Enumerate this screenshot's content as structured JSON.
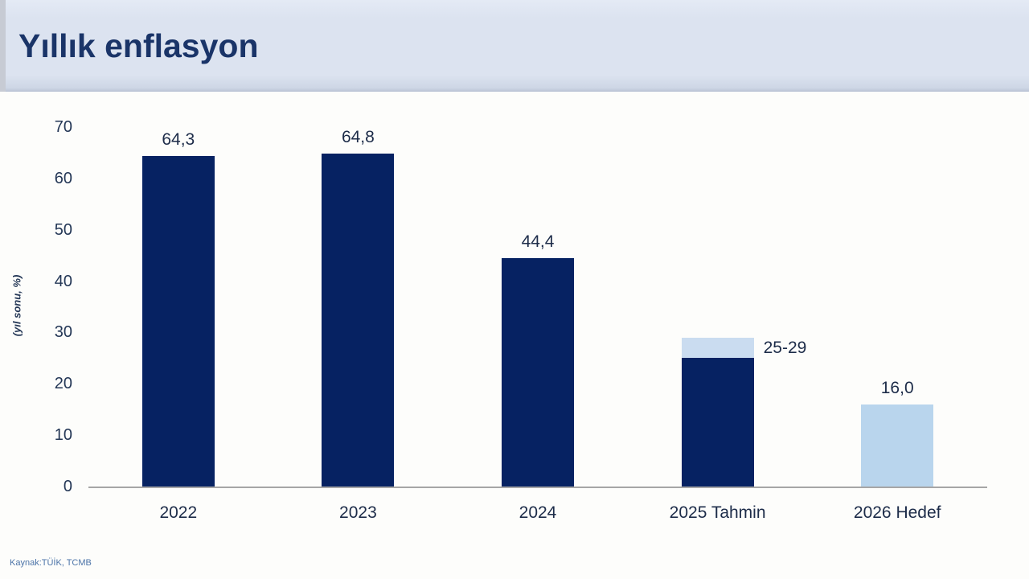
{
  "header": {
    "title": "Yıllık enflasyon"
  },
  "footer": {
    "source_label": "Kaynak:TÜİK, TCMB"
  },
  "colors": {
    "header_band": "#dce3f0",
    "header_band_edge": "#b9c2d3",
    "header_band_left_strip": "#c7cbd4",
    "title_text": "#1a3468",
    "bar_navy": "#062262",
    "bar_light_blue": "#b9d5ed",
    "bar_light_blue_cap": "#cadcf0",
    "axis_line": "#a6a6a6",
    "tick_text": "#243756",
    "data_label_text": "#1d2c49",
    "source_text": "#4c74a8"
  },
  "chart_data": {
    "type": "bar",
    "title": "Yıllık enflasyon",
    "ylabel": "(yıl sonu, %)",
    "xlabel": "",
    "ylim": [
      0,
      70
    ],
    "yticks": [
      0,
      10,
      20,
      30,
      40,
      50,
      60,
      70
    ],
    "grid": false,
    "legend": "none",
    "categories": [
      "2022",
      "2023",
      "2024",
      "2025 Tahmin",
      "2026 Hedef"
    ],
    "bars": [
      {
        "category": "2022",
        "value": 64.3,
        "label": "64,3",
        "color": "bar_navy",
        "label_position": "above"
      },
      {
        "category": "2023",
        "value": 64.8,
        "label": "64,8",
        "color": "bar_navy",
        "label_position": "above"
      },
      {
        "category": "2024",
        "value": 44.4,
        "label": "44,4",
        "color": "bar_navy",
        "label_position": "above"
      },
      {
        "category": "2025 Tahmin",
        "value_low": 25,
        "value_high": 29,
        "label": "25-29",
        "label_position": "right",
        "segments": [
          {
            "from": 0,
            "to": 25,
            "color": "bar_navy"
          },
          {
            "from": 25,
            "to": 29,
            "color": "bar_light_blue_cap"
          }
        ]
      },
      {
        "category": "2026 Hedef",
        "value": 16.0,
        "label": "16,0",
        "color": "bar_light_blue",
        "label_position": "above"
      }
    ]
  }
}
